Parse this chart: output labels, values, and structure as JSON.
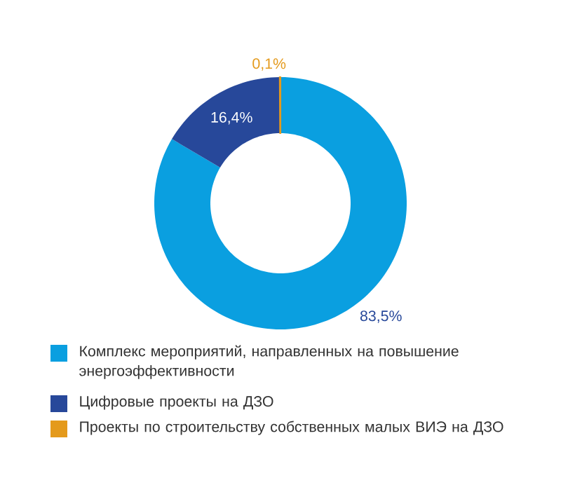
{
  "chart_data": {
    "type": "donut",
    "categories": [
      "Комплекс мероприятий, направленных на повышение энергоэффективности",
      "Цифровые проекты на ДЗО",
      "Проекты по строительству собственных малых ВИЭ на ДЗО"
    ],
    "values": [
      83.5,
      16.4,
      0.1
    ],
    "colors": [
      "#0a9fe0",
      "#27489a",
      "#e49a1c"
    ],
    "value_labels": [
      "83,5%",
      "16,4%",
      "0,1%"
    ],
    "legend": "bottom"
  }
}
